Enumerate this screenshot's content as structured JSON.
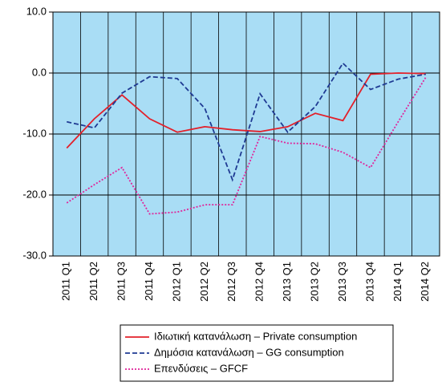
{
  "chart_data": {
    "type": "line",
    "categories": [
      "2011 Q1",
      "2011 Q2",
      "2011 Q3",
      "2011 Q4",
      "2012 Q1",
      "2012 Q2",
      "2012 Q3",
      "2012 Q4",
      "2013 Q1",
      "2013 Q2",
      "2013 Q3",
      "2013 Q4",
      "2014 Q1",
      "2014 Q2"
    ],
    "series": [
      {
        "name": "Ιδιωτική κατανάλωση – Private consumption",
        "color": "#e3202a",
        "style": "solid",
        "values": [
          -12.3,
          -7.5,
          -3.6,
          -7.5,
          -9.7,
          -8.8,
          -9.3,
          -9.6,
          -8.8,
          -6.6,
          -7.8,
          -0.2,
          0.0,
          -0.1
        ]
      },
      {
        "name": "Δημόσια κατανάλωση – GG consumption",
        "color": "#1f3a93",
        "style": "dashed",
        "values": [
          -8.0,
          -9.0,
          -3.3,
          -0.6,
          -0.9,
          -5.8,
          -17.5,
          -3.4,
          -9.7,
          -5.5,
          1.6,
          -2.7,
          -1.0,
          -0.2
        ]
      },
      {
        "name": "Επενδύσεις – GFCF",
        "color": "#e0249a",
        "style": "dotted",
        "values": [
          -21.3,
          -18.3,
          -15.5,
          -23.1,
          -22.8,
          -21.6,
          -21.6,
          -10.4,
          -11.5,
          -11.6,
          -13.0,
          -15.5,
          -8.0,
          -0.7
        ]
      }
    ],
    "ylim": [
      -30,
      10
    ],
    "yticks": [
      {
        "value": -30,
        "label": "-30.0"
      },
      {
        "value": -20,
        "label": "-20.0"
      },
      {
        "value": -10,
        "label": "-10.0"
      },
      {
        "value": 0,
        "label": "0.0"
      },
      {
        "value": 10,
        "label": "10.0"
      }
    ],
    "grid": true,
    "plot_background": "#a9ddf5",
    "legend": "bottom"
  }
}
